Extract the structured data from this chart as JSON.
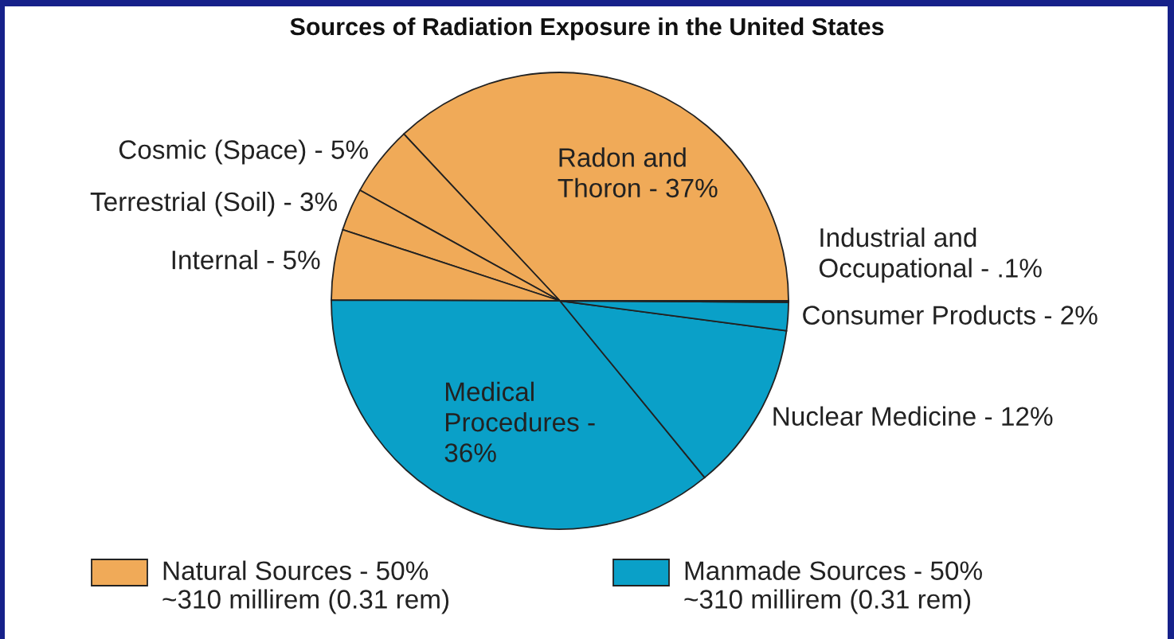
{
  "chart_data": {
    "type": "pie",
    "title": "Sources of Radiation Exposure in the United States",
    "categories": [
      "Radon and\nThoron - 37%",
      "Cosmic (Space) - 5%",
      "Terrestrial (Soil) - 3%",
      "Internal - 5%",
      "Medical\nProcedures -\n36%",
      "Nuclear Medicine - 12%",
      "Consumer Products - 2%",
      "Industrial and\nOccupational - .1%"
    ],
    "values": [
      37,
      5,
      3,
      5,
      36,
      12,
      2,
      0.1
    ],
    "colors": [
      "#f0aa58",
      "#f0aa58",
      "#f0aa58",
      "#f0aa58",
      "#0aa0c8",
      "#0aa0c8",
      "#0aa0c8",
      "#0aa0c8"
    ],
    "annotations": [
      "Natural Sources - 50%\n~310 millirem (0.31 rem)",
      "Manmade Sources - 50%\n~310 millirem (0.31 rem)"
    ]
  }
}
